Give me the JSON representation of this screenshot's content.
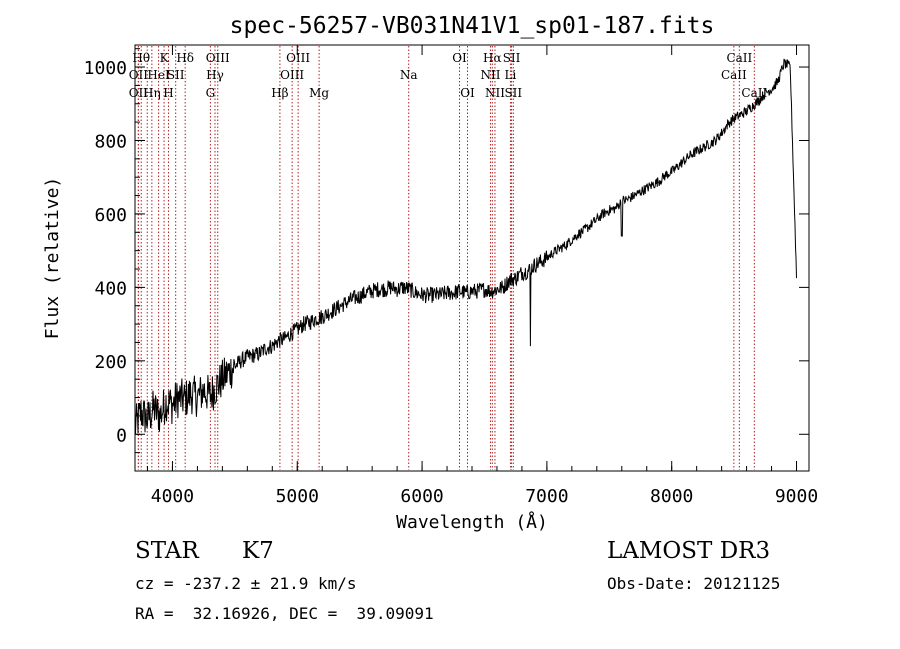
{
  "chart_data": {
    "type": "line",
    "title": "spec-56257-VB031N41V1_sp01-187.fits",
    "xlabel": "Wavelength (Å)",
    "ylabel": "Flux (relative)",
    "xlim": [
      3700,
      9100
    ],
    "ylim": [
      -100,
      1060
    ],
    "xticks": [
      4000,
      5000,
      6000,
      7000,
      8000,
      9000
    ],
    "xtick_labels": [
      "4000",
      "5000",
      "6000",
      "7000",
      "8000",
      "9000"
    ],
    "yticks": [
      0,
      200,
      400,
      600,
      800,
      1000
    ],
    "ytick_labels": [
      "0",
      "200",
      "400",
      "600",
      "800",
      "1000"
    ],
    "grid": false,
    "series": [
      {
        "name": "flux",
        "x": [
          3700,
          3750,
          3800,
          3850,
          3900,
          3950,
          4000,
          4050,
          4100,
          4150,
          4200,
          4250,
          4300,
          4350,
          4400,
          4450,
          4500,
          4550,
          4600,
          4650,
          4700,
          4750,
          4800,
          4850,
          4900,
          4950,
          5000,
          5050,
          5100,
          5150,
          5200,
          5250,
          5300,
          5350,
          5400,
          5450,
          5500,
          5550,
          5600,
          5650,
          5700,
          5750,
          5800,
          5850,
          5900,
          5950,
          6000,
          6050,
          6100,
          6150,
          6200,
          6250,
          6300,
          6350,
          6400,
          6450,
          6500,
          6550,
          6600,
          6650,
          6700,
          6750,
          6800,
          6850,
          6900,
          6950,
          7000,
          7050,
          7100,
          7150,
          7200,
          7250,
          7300,
          7350,
          7400,
          7450,
          7500,
          7550,
          7600,
          7650,
          7700,
          7750,
          7800,
          7850,
          7900,
          7950,
          8000,
          8050,
          8100,
          8150,
          8200,
          8250,
          8300,
          8350,
          8400,
          8450,
          8500,
          8550,
          8600,
          8650,
          8700,
          8750,
          8800,
          8850,
          8900,
          8950,
          9000
        ],
        "y": [
          20,
          60,
          40,
          70,
          50,
          90,
          80,
          100,
          95,
          110,
          100,
          120,
          105,
          130,
          150,
          170,
          185,
          200,
          210,
          215,
          220,
          235,
          240,
          255,
          260,
          275,
          285,
          300,
          305,
          315,
          320,
          330,
          340,
          350,
          360,
          370,
          375,
          385,
          390,
          395,
          395,
          400,
          395,
          400,
          395,
          385,
          380,
          378,
          380,
          380,
          385,
          385,
          390,
          385,
          390,
          390,
          395,
          390,
          395,
          400,
          420,
          425,
          440,
          445,
          460,
          470,
          480,
          495,
          505,
          515,
          530,
          545,
          555,
          570,
          585,
          600,
          610,
          615,
          635,
          640,
          650,
          660,
          670,
          680,
          690,
          705,
          715,
          730,
          745,
          760,
          770,
          780,
          790,
          800,
          820,
          845,
          860,
          870,
          880,
          895,
          910,
          930,
          940,
          960,
          1010,
          1000,
          430
        ]
      }
    ],
    "lines": [
      {
        "x": 3750,
        "row": 0,
        "label": "Hθ"
      },
      {
        "x": 3727,
        "row": 1,
        "label": "OII"
      },
      {
        "x": 3727,
        "row": 2,
        "label": "OII"
      },
      {
        "x": 3798,
        "row": 0,
        "label": ""
      },
      {
        "x": 3835,
        "row": 2,
        "label": "Hη"
      },
      {
        "x": 3889,
        "row": 1,
        "label": "HeI"
      },
      {
        "x": 3933,
        "row": 0,
        "label": "K"
      },
      {
        "x": 3968,
        "row": 2,
        "label": "H"
      },
      {
        "x": 4026,
        "row": 1,
        "label": "SII"
      },
      {
        "x": 4102,
        "row": 0,
        "label": "Hδ"
      },
      {
        "x": 4304,
        "row": 2,
        "label": "G"
      },
      {
        "x": 4341,
        "row": 1,
        "label": "Hγ"
      },
      {
        "x": 4363,
        "row": 0,
        "label": "OIII"
      },
      {
        "x": 4861,
        "row": 2,
        "label": "Hβ"
      },
      {
        "x": 4959,
        "row": 1,
        "label": "OIII"
      },
      {
        "x": 5007,
        "row": 0,
        "label": "OIII"
      },
      {
        "x": 5175,
        "row": 2,
        "label": "Mg"
      },
      {
        "x": 5893,
        "row": 1,
        "label": "Na"
      },
      {
        "x": 6300,
        "row": 0,
        "label": "OI"
      },
      {
        "x": 6364,
        "row": 2,
        "label": "OI"
      },
      {
        "x": 6548,
        "row": 1,
        "label": "NII"
      },
      {
        "x": 6563,
        "row": 0,
        "label": "Hα"
      },
      {
        "x": 6584,
        "row": 2,
        "label": "NII"
      },
      {
        "x": 6708,
        "row": 1,
        "label": "Li"
      },
      {
        "x": 6717,
        "row": 0,
        "label": "SII"
      },
      {
        "x": 6731,
        "row": 2,
        "label": "SII"
      },
      {
        "x": 8498,
        "row": 1,
        "label": "CaII"
      },
      {
        "x": 8542,
        "row": 0,
        "label": "CaII"
      },
      {
        "x": 8662,
        "row": 2,
        "label": "CaII"
      }
    ],
    "line_color": "#b22222"
  },
  "footer": {
    "class": "STAR",
    "subclass": "K7",
    "survey": "LAMOST DR3",
    "cz": "cz = -237.2 ± 21.9 km/s",
    "obs_date": "Obs-Date: 20121125",
    "coords": "RA =  32.16926, DEC =  39.09091"
  }
}
